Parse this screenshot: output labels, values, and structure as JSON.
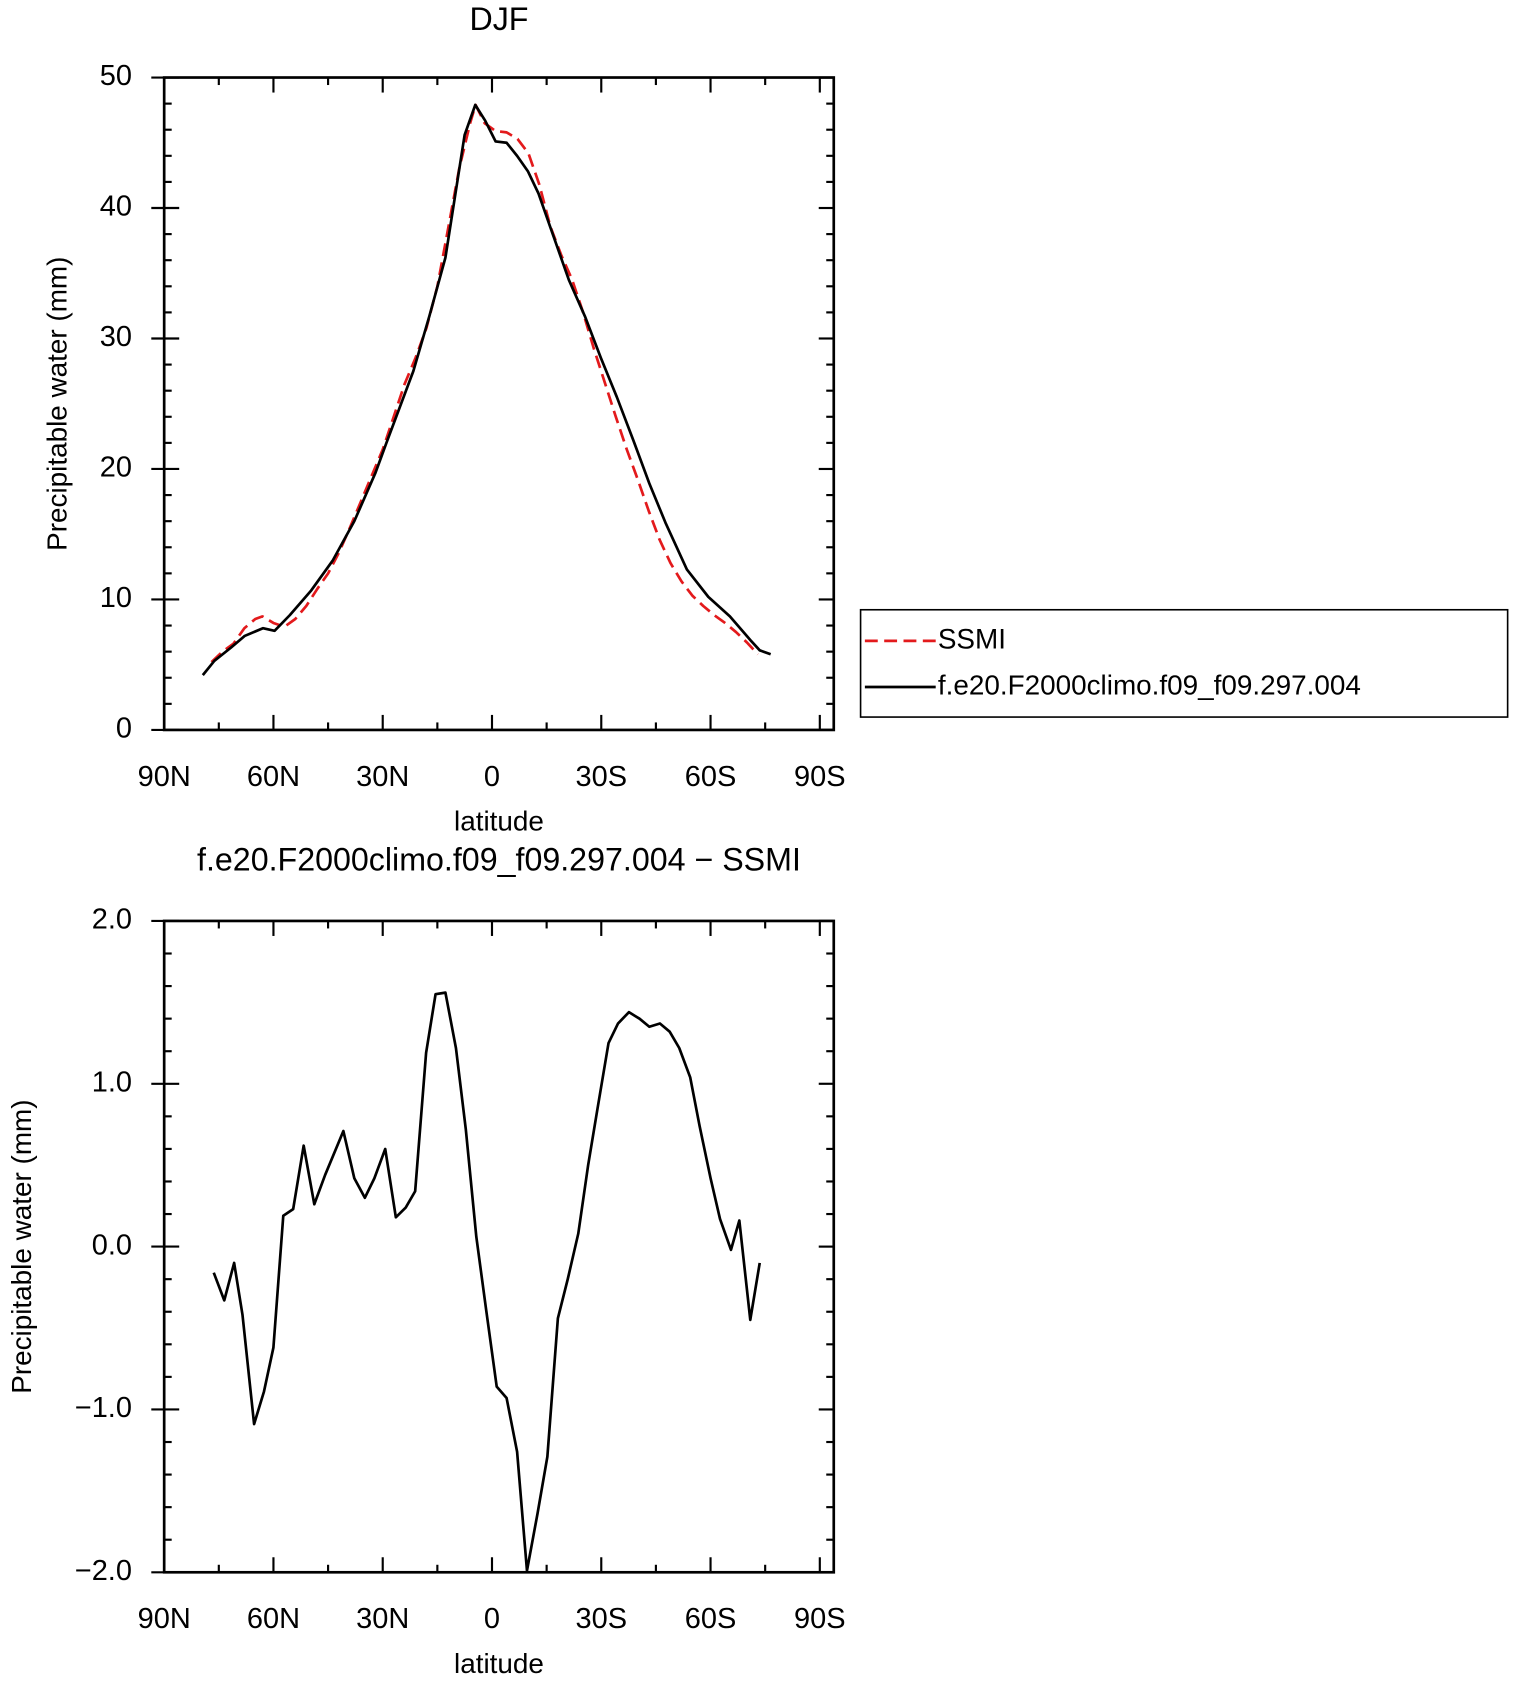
{
  "chart_data": [
    {
      "type": "line",
      "title": "DJF",
      "x_label": "latitude",
      "y_label": "Precipitable water (mm)",
      "xlim": [
        90,
        -90
      ],
      "xticks": [
        {
          "value": 90,
          "label": "90N"
        },
        {
          "value": 60,
          "label": "60N"
        },
        {
          "value": 30,
          "label": "30N"
        },
        0,
        {
          "value": -30,
          "label": "30S"
        },
        {
          "value": -60,
          "label": "60S"
        },
        {
          "value": -90,
          "label": "90S"
        }
      ],
      "ylim": [
        0,
        50
      ],
      "yticks": [
        0,
        10,
        20,
        30,
        40,
        50
      ],
      "legend": "right",
      "series": [
        {
          "name": "SSMI",
          "color": "#e31a1c",
          "dash": true,
          "x": [
            77,
            74,
            71,
            68,
            65,
            63,
            60,
            57,
            54,
            51,
            48,
            45,
            42,
            39,
            36,
            33,
            30,
            27,
            24,
            21,
            18,
            15,
            12,
            9,
            6,
            4.5,
            2,
            -1,
            -4,
            -7,
            -10,
            -13,
            -16,
            -19,
            -22,
            -25,
            -28,
            -31,
            -34,
            -37,
            -40,
            -43,
            -46,
            -49,
            -52,
            -55,
            -58,
            -61,
            -64,
            -67,
            -70,
            -73
          ],
          "values": [
            5.2,
            6.0,
            6.6,
            7.8,
            8.5,
            8.7,
            8.2,
            7.9,
            8.5,
            9.5,
            10.8,
            12.0,
            13.6,
            15.5,
            17.5,
            19.5,
            21.5,
            24.0,
            26.5,
            28.5,
            30.8,
            34.0,
            38.5,
            43.0,
            46.5,
            47.9,
            46.5,
            45.9,
            45.8,
            45.3,
            44.2,
            41.8,
            38.6,
            36.4,
            34.5,
            32.0,
            29.2,
            26.6,
            24.0,
            21.5,
            19.2,
            16.8,
            14.6,
            12.8,
            11.4,
            10.3,
            9.5,
            8.8,
            8.2,
            7.5,
            6.7,
            5.8
          ]
        },
        {
          "name": "f.e20.F2000climo.f09_f09.297.004",
          "color": "#000000",
          "dash": false,
          "x": [
            79.4,
            76.2,
            71.7,
            67.9,
            62.9,
            59.7,
            55.5,
            49.6,
            43.7,
            37.8,
            32.0,
            29.0,
            21.6,
            17.2,
            12.8,
            7.5,
            4.6,
            1.9,
            -1.0,
            -4.0,
            -6.9,
            -9.9,
            -12.8,
            -15.8,
            -21.1,
            -25.5,
            -29.9,
            -34.3,
            -38.8,
            -43.2,
            -47.6,
            -53.5,
            -59.4,
            -65.3,
            -71.2,
            -73.5,
            -76.5
          ],
          "values": [
            4.2,
            5.3,
            6.3,
            7.2,
            7.8,
            7.6,
            8.8,
            10.7,
            13.0,
            16.0,
            19.7,
            22.0,
            27.5,
            31.7,
            36.2,
            45.6,
            47.9,
            46.7,
            45.1,
            45.0,
            44.0,
            42.8,
            41.1,
            38.7,
            34.5,
            31.7,
            28.5,
            25.5,
            22.2,
            18.9,
            15.9,
            12.3,
            10.2,
            8.7,
            6.8,
            6.1,
            5.8
          ]
        }
      ]
    },
    {
      "type": "line",
      "title": "f.e20.F2000climo.f09_f09.297.004 − SSMI",
      "x_label": "latitude",
      "y_label": "Precipitable water (mm)",
      "xlim": [
        90,
        -90
      ],
      "xticks": [
        {
          "value": 90,
          "label": "90N"
        },
        {
          "value": 60,
          "label": "60N"
        },
        {
          "value": 30,
          "label": "30N"
        },
        0,
        {
          "value": -30,
          "label": "30S"
        },
        {
          "value": -60,
          "label": "60S"
        },
        {
          "value": -90,
          "label": "90S"
        }
      ],
      "ylim": [
        -2,
        2
      ],
      "yticks": [
        {
          "value": -2,
          "label": "−2.0"
        },
        {
          "value": -1,
          "label": "−1.0"
        },
        {
          "value": 0,
          "label": "0.0"
        },
        {
          "value": 1,
          "label": "1.0"
        },
        {
          "value": 2,
          "label": "2.0"
        }
      ],
      "color": "#000000",
      "x": [
        76.4,
        73.5,
        70.8,
        68.5,
        65.3,
        62.6,
        60.0,
        57.3,
        54.6,
        51.7,
        48.8,
        45.8,
        40.8,
        37.8,
        34.9,
        32.3,
        29.3,
        26.4,
        23.7,
        21.1,
        18.1,
        15.5,
        12.8,
        9.9,
        7.2,
        4.3,
        1.6,
        -1.3,
        -4.0,
        -6.9,
        -9.6,
        -12.5,
        -15.2,
        -18.1,
        -20.8,
        -23.7,
        -26.4,
        -29.0,
        -32.0,
        -34.6,
        -37.6,
        -40.5,
        -43.2,
        -46.1,
        -48.8,
        -51.4,
        -54.4,
        -57.0,
        -60.0,
        -62.6,
        -65.6,
        -67.9,
        -70.9,
        -73.5
      ],
      "values": [
        -0.16,
        -0.33,
        -0.1,
        -0.42,
        -1.09,
        -0.89,
        -0.62,
        0.19,
        0.23,
        0.62,
        0.26,
        0.44,
        0.71,
        0.42,
        0.3,
        0.42,
        0.6,
        0.18,
        0.24,
        0.34,
        1.19,
        1.55,
        1.56,
        1.22,
        0.72,
        0.06,
        -0.39,
        -0.86,
        -0.93,
        -1.26,
        -1.99,
        -1.64,
        -1.29,
        -0.44,
        -0.2,
        0.08,
        0.5,
        0.85,
        1.25,
        1.37,
        1.44,
        1.4,
        1.35,
        1.37,
        1.32,
        1.22,
        1.04,
        0.74,
        0.42,
        0.17,
        -0.02,
        0.16,
        -0.45,
        -0.1
      ]
    }
  ]
}
